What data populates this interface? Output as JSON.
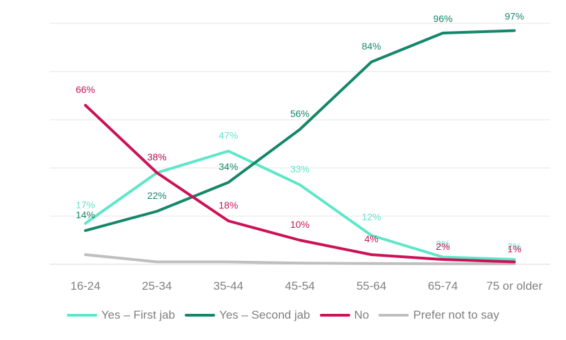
{
  "chart_data": {
    "type": "line",
    "title": "",
    "xlabel": "",
    "ylabel": "",
    "ylim": [
      0,
      100
    ],
    "grid": true,
    "legend_position": "bottom",
    "categories": [
      "16-24",
      "25-34",
      "35-44",
      "45-54",
      "55-64",
      "65-74",
      "75 or older"
    ],
    "series": [
      {
        "name": "Yes – First jab",
        "color": "#5ee6c8",
        "values": [
          17,
          38,
          47,
          33,
          12,
          3,
          2
        ],
        "labels": [
          "17%",
          "38%",
          "47%",
          "33%",
          "12%",
          "3%",
          "2%"
        ]
      },
      {
        "name": "Yes – Second jab",
        "color": "#16866a",
        "values": [
          14,
          22,
          34,
          56,
          84,
          96,
          97
        ],
        "labels": [
          "14%",
          "22%",
          "34%",
          "56%",
          "84%",
          "96%",
          "97%"
        ]
      },
      {
        "name": "No",
        "color": "#cc1157",
        "values": [
          66,
          38,
          18,
          10,
          4,
          2,
          1
        ],
        "labels": [
          "66%",
          "38%",
          "18%",
          "10%",
          "4%",
          "2%",
          "1%"
        ]
      },
      {
        "name": "Prefer not to say",
        "color": "#bfbfbf",
        "values": [
          4,
          1,
          1,
          0.5,
          0.3,
          0.2,
          0.2
        ],
        "labels": []
      }
    ]
  }
}
